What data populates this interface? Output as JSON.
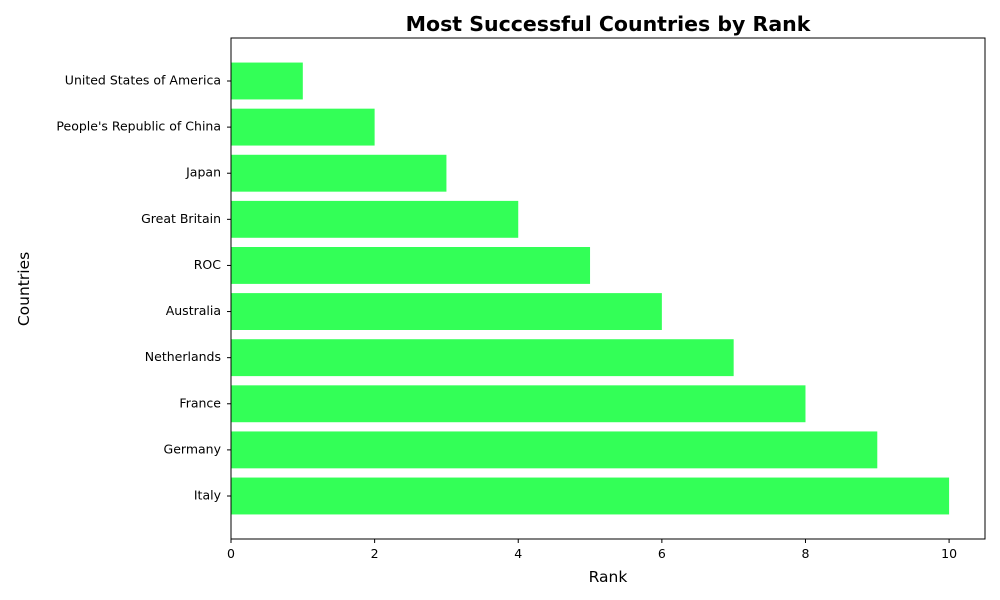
{
  "chart_data": {
    "type": "bar",
    "orientation": "horizontal",
    "title": "Most Successful Countries by Rank",
    "xlabel": "Rank",
    "ylabel": "Countries",
    "categories": [
      "United States of America",
      "People's Republic of China",
      "Japan",
      "Great Britain",
      "ROC",
      "Australia",
      "Netherlands",
      "France",
      "Germany",
      "Italy"
    ],
    "values": [
      1,
      2,
      3,
      4,
      5,
      6,
      7,
      8,
      9,
      10
    ],
    "xlim": [
      0,
      10.5
    ],
    "xticks": [
      0,
      2,
      4,
      6,
      8,
      10
    ],
    "bar_color": "#33ff57",
    "grid": false,
    "legend": "none"
  }
}
